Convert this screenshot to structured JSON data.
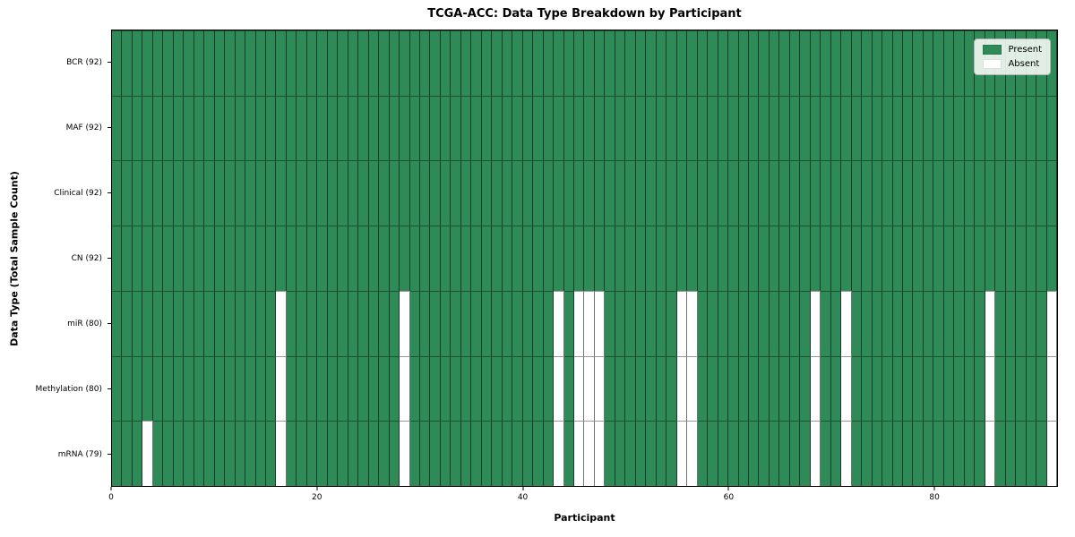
{
  "chart_data": {
    "type": "heatmap",
    "title": "TCGA-ACC: Data Type Breakdown by Participant",
    "xlabel": "Participant",
    "ylabel": "Data Type (Total Sample Count)",
    "x_ticks": [
      0,
      20,
      40,
      60,
      80
    ],
    "x_range": [
      0,
      92
    ],
    "n_participants": 92,
    "grid": true,
    "legend_position": "upper right",
    "colors": {
      "present": "#2e8b57",
      "absent": "#ffffff"
    },
    "legend": [
      {
        "label": "Present",
        "color": "#2e8b57"
      },
      {
        "label": "Absent",
        "color": "#ffffff"
      }
    ],
    "rows": [
      {
        "label": "BCR (92)",
        "data_type": "BCR",
        "total": 92,
        "absent_participants": []
      },
      {
        "label": "MAF (92)",
        "data_type": "MAF",
        "total": 92,
        "absent_participants": []
      },
      {
        "label": "Clinical (92)",
        "data_type": "Clinical",
        "total": 92,
        "absent_participants": []
      },
      {
        "label": "CN (92)",
        "data_type": "CN",
        "total": 92,
        "absent_participants": []
      },
      {
        "label": "miR (80)",
        "data_type": "miR",
        "total": 80,
        "absent_participants": [
          16,
          28,
          43,
          45,
          46,
          47,
          55,
          56,
          68,
          71,
          85,
          91
        ]
      },
      {
        "label": "Methylation (80)",
        "data_type": "Methylation",
        "total": 80,
        "absent_participants": [
          16,
          28,
          43,
          45,
          46,
          47,
          55,
          56,
          68,
          71,
          85,
          91
        ]
      },
      {
        "label": "mRNA (79)",
        "data_type": "mRNA",
        "total": 79,
        "absent_participants": [
          3,
          16,
          28,
          43,
          45,
          46,
          47,
          55,
          56,
          68,
          71,
          85,
          91
        ]
      }
    ]
  }
}
